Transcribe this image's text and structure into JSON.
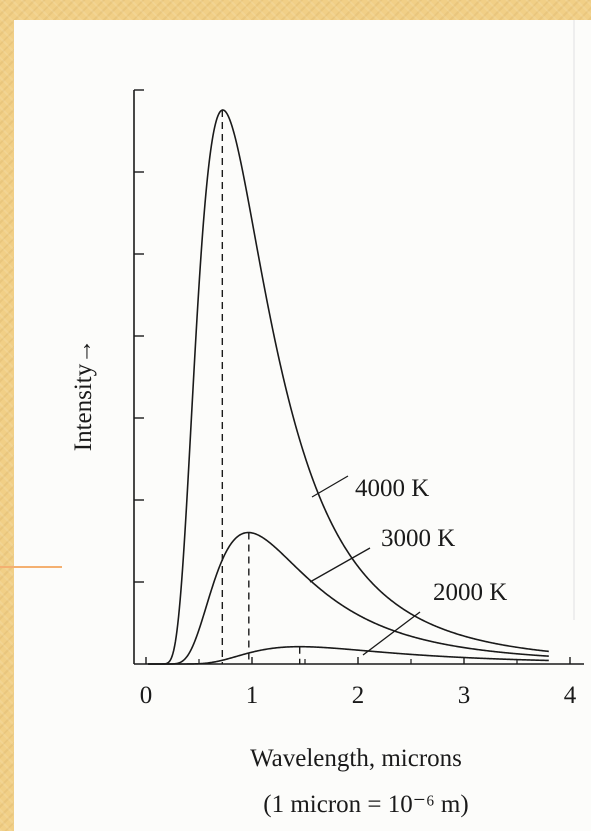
{
  "chart_data": {
    "type": "line",
    "title": "",
    "ylabel": "Intensity→",
    "xlabel": "Wavelength, microns",
    "xlabel_note": "(1 micron = 10⁻⁶ m)",
    "x_ticks": [
      "0",
      "1",
      "2",
      "3",
      "4"
    ],
    "xlim": [
      0,
      4
    ],
    "ylim": [
      0,
      100
    ],
    "y_ticks_count": 7,
    "grid": false,
    "legend": "inline-labels",
    "line_color": "#1a1a1a",
    "x_end": 3.8,
    "series": [
      {
        "name": "4000 K",
        "temperature": 4000,
        "peak_wavelength": 0.72,
        "label": "4000 K"
      },
      {
        "name": "3000 K",
        "temperature": 3000,
        "peak_wavelength": 0.97,
        "label": "3000 K"
      },
      {
        "name": "2000 K",
        "temperature": 2000,
        "peak_wavelength": 1.45,
        "label": "2000 K"
      }
    ]
  }
}
